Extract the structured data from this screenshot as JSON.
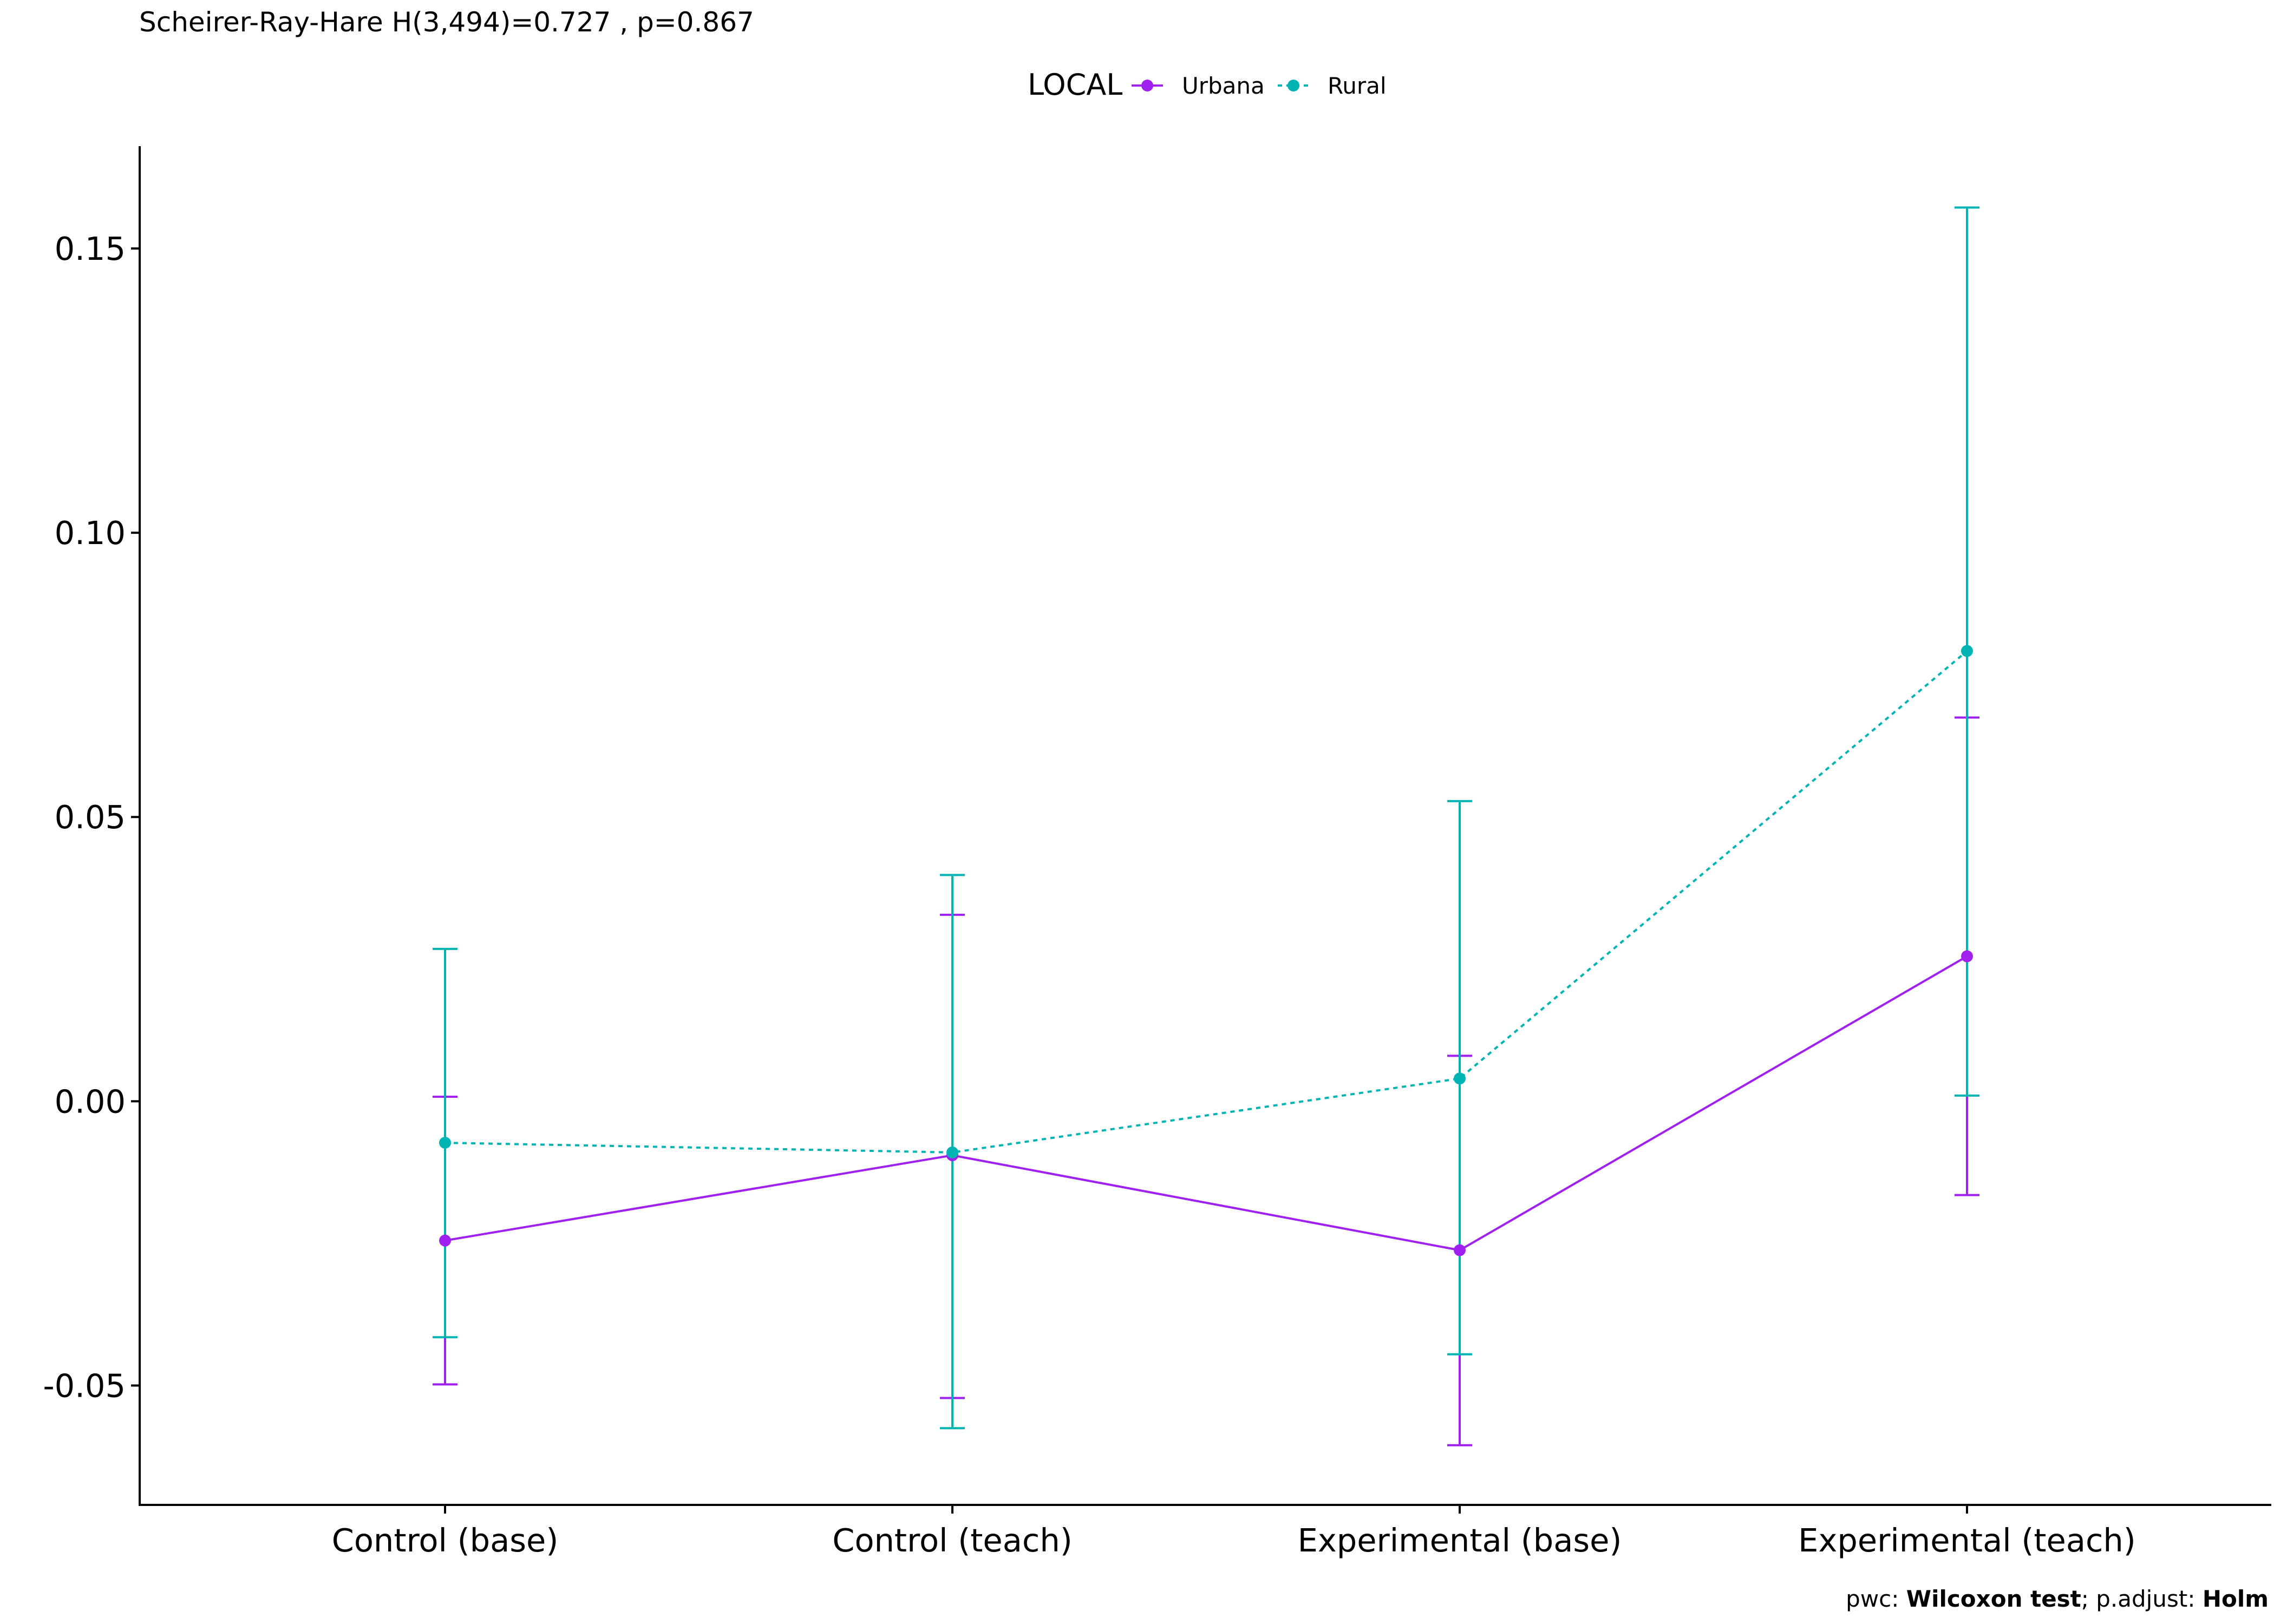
{
  "chart_data": {
    "type": "line",
    "subtitle": "Scheirer-Ray-Hare H(3,494)=0.727 , p=0.867",
    "caption": {
      "prefix": "pwc: ",
      "test": "Wilcoxon test",
      "middle": "; p.adjust: ",
      "method": "Holm"
    },
    "legend": {
      "title": "LOCAL",
      "placement": "top-center"
    },
    "categories": [
      "Control (base)",
      "Control (teach)",
      "Experimental (base)",
      "Experimental (teach)"
    ],
    "ylim": [
      -0.071,
      0.168
    ],
    "y_ticks": [
      -0.05,
      0.0,
      0.05,
      0.1,
      0.15
    ],
    "y_tick_labels": [
      "-0.05",
      "0.00",
      "0.05",
      "0.10",
      "0.15"
    ],
    "grid": false,
    "series": [
      {
        "name": "Urbana",
        "color": "#a020f0",
        "line_style": "solid",
        "values": [
          -0.0245,
          -0.0095,
          -0.0262,
          0.0255
        ],
        "error_low": [
          -0.0498,
          -0.0522,
          -0.0605,
          -0.0165
        ],
        "error_high": [
          0.0008,
          0.0328,
          0.008,
          0.0675
        ]
      },
      {
        "name": "Rural",
        "color": "#00b4b4",
        "line_style": "dotted",
        "values": [
          -0.0073,
          -0.009,
          0.004,
          0.0792
        ],
        "error_low": [
          -0.0415,
          -0.0575,
          -0.0445,
          0.001
        ],
        "error_high": [
          0.0268,
          0.0398,
          0.0528,
          0.1572
        ]
      }
    ]
  }
}
